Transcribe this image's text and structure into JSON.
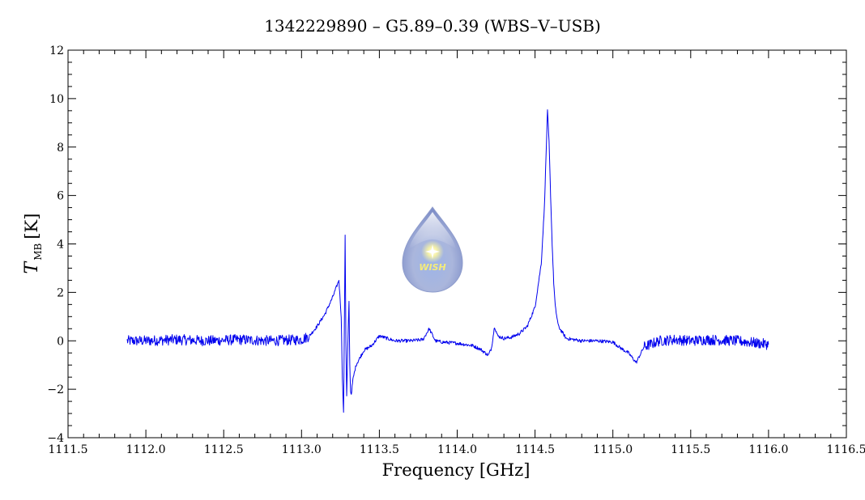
{
  "chart_data": {
    "type": "line",
    "title": "1342229890 – G5.89–0.39 (WBS–V–USB)",
    "xlabel": "Frequency [GHz]",
    "ylabel": {
      "main": "T",
      "sub": "MB",
      "unit": "[K]"
    },
    "xlim": [
      1111.5,
      1116.5
    ],
    "ylim": [
      -4,
      12
    ],
    "xticks": [
      1111.5,
      1112.0,
      1112.5,
      1113.0,
      1113.5,
      1114.0,
      1114.5,
      1115.0,
      1115.5,
      1116.0,
      1116.5
    ],
    "xtick_labels": [
      "1111.5",
      "1112.0",
      "1112.5",
      "1113.0",
      "1113.5",
      "1114.0",
      "1114.5",
      "1115.0",
      "1115.5",
      "1116.0",
      "1116.5"
    ],
    "yticks": [
      -4,
      -2,
      0,
      2,
      4,
      6,
      8,
      10,
      12
    ],
    "ytick_labels": [
      "−4",
      "−2",
      "0",
      "2",
      "4",
      "6",
      "8",
      "10",
      "12"
    ],
    "grid": false,
    "series": [
      {
        "color": "#0000ee",
        "x": [
          1111.88,
          1112.0,
          1112.2,
          1112.4,
          1112.6,
          1112.8,
          1113.0,
          1113.05,
          1113.1,
          1113.15,
          1113.2,
          1113.24,
          1113.255,
          1113.262,
          1113.27,
          1113.275,
          1113.28,
          1113.285,
          1113.29,
          1113.3,
          1113.305,
          1113.31,
          1113.315,
          1113.32,
          1113.33,
          1113.35,
          1113.4,
          1113.45,
          1113.5,
          1113.6,
          1113.7,
          1113.78,
          1113.82,
          1113.86,
          1113.9,
          1114.0,
          1114.1,
          1114.15,
          1114.2,
          1114.22,
          1114.24,
          1114.26,
          1114.3,
          1114.35,
          1114.4,
          1114.45,
          1114.5,
          1114.54,
          1114.56,
          1114.57,
          1114.58,
          1114.59,
          1114.6,
          1114.61,
          1114.62,
          1114.63,
          1114.65,
          1114.68,
          1114.7,
          1114.75,
          1114.8,
          1114.9,
          1115.0,
          1115.05,
          1115.1,
          1115.15,
          1115.2,
          1115.3,
          1115.4,
          1115.5,
          1115.6,
          1115.8,
          1116.0
        ],
        "y": [
          0.0,
          0.0,
          0.05,
          0.0,
          0.05,
          0.0,
          0.05,
          0.2,
          0.6,
          1.1,
          1.8,
          2.5,
          1.0,
          -1.5,
          -3.0,
          0.5,
          4.4,
          0.0,
          -2.3,
          0.5,
          1.6,
          -1.0,
          -2.1,
          -2.2,
          -1.6,
          -1.0,
          -0.4,
          -0.2,
          0.2,
          0.0,
          0.0,
          0.05,
          0.5,
          0.0,
          -0.05,
          -0.1,
          -0.2,
          -0.35,
          -0.6,
          -0.3,
          0.6,
          0.2,
          0.1,
          0.15,
          0.3,
          0.6,
          1.4,
          3.2,
          5.5,
          7.5,
          9.5,
          8.2,
          6.0,
          4.0,
          2.4,
          1.4,
          0.6,
          0.3,
          0.1,
          0.05,
          0.0,
          0.0,
          -0.05,
          -0.3,
          -0.5,
          -0.9,
          -0.25,
          0.0,
          0.05,
          0.0,
          0.05,
          0.0,
          -0.15
        ]
      }
    ]
  },
  "logo": {
    "text": "WISH"
  }
}
